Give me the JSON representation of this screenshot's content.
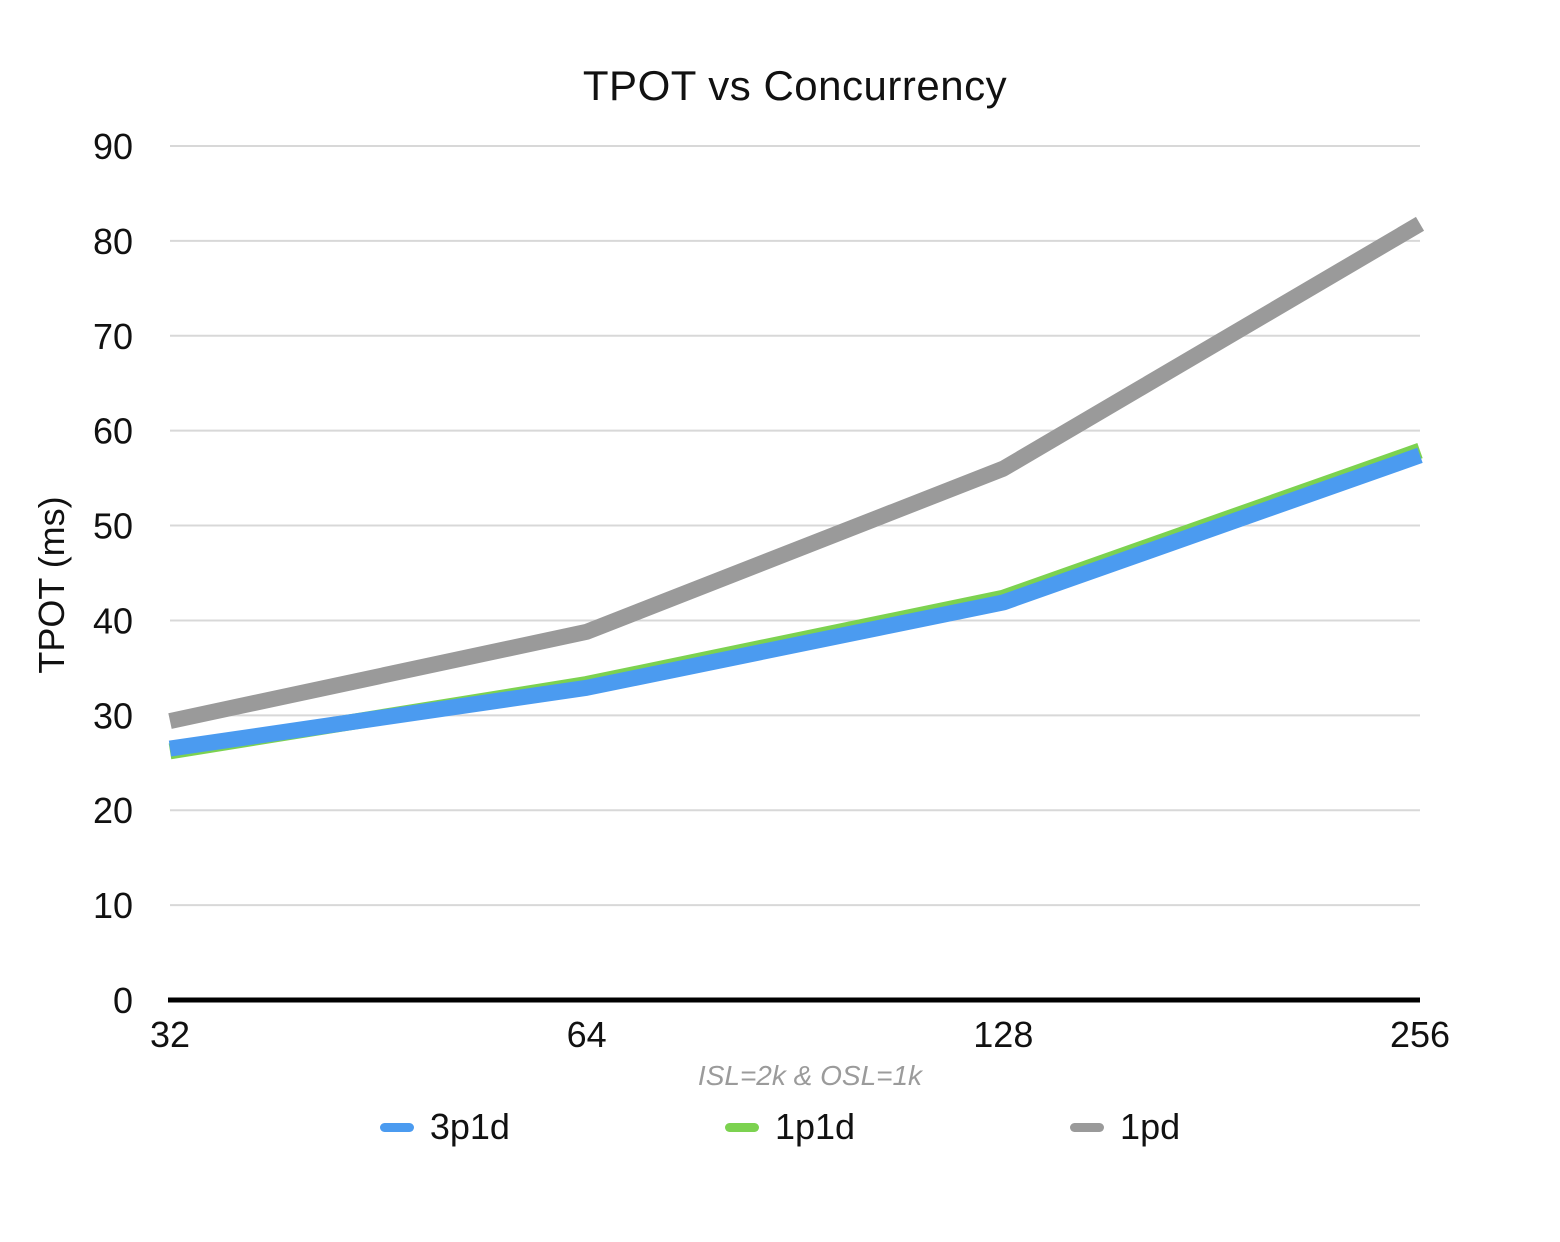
{
  "chart": {
    "title": "TPOT vs Concurrency",
    "y_axis_title": "TPOT (ms)",
    "x_axis_subtitle": "ISL=2k & OSL=1k"
  },
  "chart_data": {
    "type": "line",
    "title": "TPOT vs Concurrency",
    "ylabel": "TPOT (ms)",
    "xlabel": "ISL=2k & OSL=1k",
    "categories": [
      "32",
      "64",
      "128",
      "256"
    ],
    "series": [
      {
        "name": "3p1d",
        "color": "#4B9BF0",
        "values": [
          26.5,
          32.9,
          41.9,
          57.4
        ]
      },
      {
        "name": "1p1d",
        "color": "#7CD250",
        "values": [
          26.2,
          33.3,
          42.4,
          57.9
        ]
      },
      {
        "name": "1pd",
        "color": "#9A9A9A",
        "values": [
          29.4,
          38.8,
          56.0,
          81.8
        ]
      }
    ],
    "ylim": [
      0,
      90
    ],
    "yticks": [
      0,
      10,
      20,
      30,
      40,
      50,
      60,
      70,
      80,
      90
    ],
    "grid": true,
    "legend_position": "bottom",
    "colors": {
      "gridline": "#D8D8D8",
      "axis_line": "#000000",
      "tick_text": "#111111",
      "subtitle_text": "#9B9B9B"
    }
  }
}
